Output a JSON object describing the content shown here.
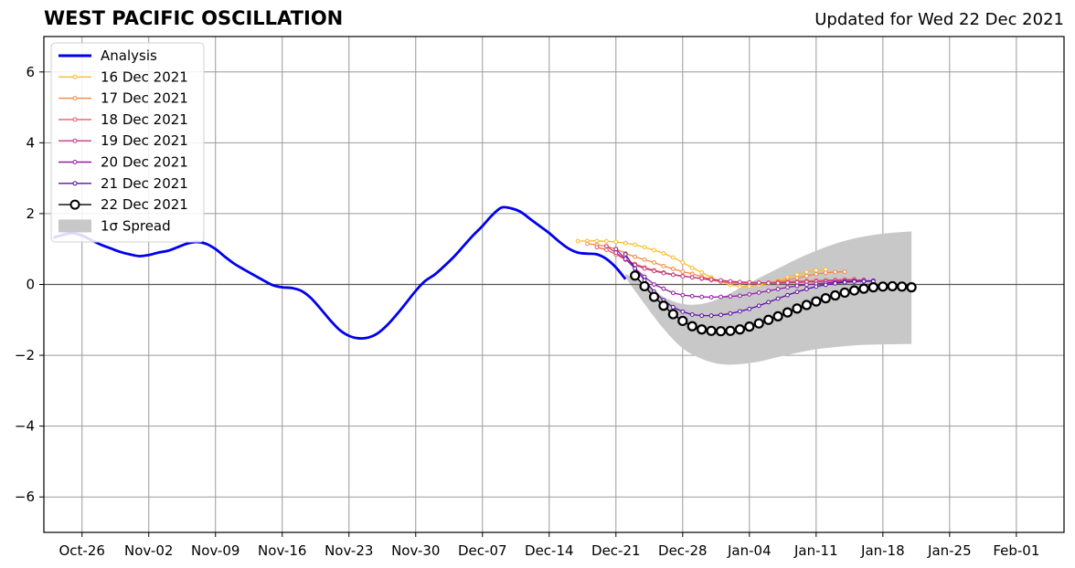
{
  "chart_data": {
    "type": "line",
    "title": "WEST PACIFIC OSCILLATION",
    "subtitle": "Updated for Wed 22 Dec 2021",
    "xlabel": "",
    "ylabel": "",
    "xlim": [
      "2021-10-22",
      "2022-02-06"
    ],
    "ylim": [
      -7,
      7
    ],
    "grid": true,
    "legend_position": "top-left",
    "x_tick_labels": [
      {
        "date": "2021-10-26",
        "label": "Oct-26"
      },
      {
        "date": "2021-11-02",
        "label": "Nov-02"
      },
      {
        "date": "2021-11-09",
        "label": "Nov-09"
      },
      {
        "date": "2021-11-16",
        "label": "Nov-16"
      },
      {
        "date": "2021-11-23",
        "label": "Nov-23"
      },
      {
        "date": "2021-11-30",
        "label": "Nov-30"
      },
      {
        "date": "2021-12-07",
        "label": "Dec-07"
      },
      {
        "date": "2021-12-14",
        "label": "Dec-14"
      },
      {
        "date": "2021-12-21",
        "label": "Dec-21"
      },
      {
        "date": "2021-12-28",
        "label": "Dec-28"
      },
      {
        "date": "2022-01-04",
        "label": "Jan-04"
      },
      {
        "date": "2022-01-11",
        "label": "Jan-11"
      },
      {
        "date": "2022-01-18",
        "label": "Jan-18"
      },
      {
        "date": "2022-01-25",
        "label": "Jan-25"
      },
      {
        "date": "2022-02-01",
        "label": "Feb-01"
      }
    ],
    "y_ticks": [
      -6,
      -4,
      -2,
      0,
      2,
      4,
      6
    ],
    "y_tick_labels": [
      "−6",
      "−4",
      "−2",
      "0",
      "2",
      "4",
      "6"
    ],
    "analysis": {
      "name": "Analysis",
      "color": "#0000ee",
      "x": [
        "2021-10-23",
        "2021-10-24",
        "2021-10-25",
        "2021-10-26",
        "2021-10-27",
        "2021-10-28",
        "2021-10-29",
        "2021-10-30",
        "2021-10-31",
        "2021-11-01",
        "2021-11-02",
        "2021-11-03",
        "2021-11-04",
        "2021-11-05",
        "2021-11-06",
        "2021-11-07",
        "2021-11-08",
        "2021-11-09",
        "2021-11-10",
        "2021-11-11",
        "2021-11-12",
        "2021-11-13",
        "2021-11-14",
        "2021-11-15",
        "2021-11-16",
        "2021-11-17",
        "2021-11-18",
        "2021-11-19",
        "2021-11-20",
        "2021-11-21",
        "2021-11-22",
        "2021-11-23",
        "2021-11-24",
        "2021-11-25",
        "2021-11-26",
        "2021-11-27",
        "2021-11-28",
        "2021-11-29",
        "2021-11-30",
        "2021-12-01",
        "2021-12-02",
        "2021-12-03",
        "2021-12-04",
        "2021-12-05",
        "2021-12-06",
        "2021-12-07",
        "2021-12-08",
        "2021-12-09",
        "2021-12-10",
        "2021-12-11",
        "2021-12-12",
        "2021-12-13",
        "2021-12-14",
        "2021-12-15",
        "2021-12-16",
        "2021-12-17",
        "2021-12-18",
        "2021-12-19",
        "2021-12-20",
        "2021-12-21",
        "2021-12-22"
      ],
      "y": [
        1.32,
        1.4,
        1.45,
        1.38,
        1.25,
        1.12,
        1.02,
        0.92,
        0.85,
        0.8,
        0.83,
        0.9,
        0.95,
        1.05,
        1.15,
        1.2,
        1.15,
        1.0,
        0.78,
        0.58,
        0.42,
        0.27,
        0.12,
        -0.02,
        -0.08,
        -0.1,
        -0.18,
        -0.38,
        -0.68,
        -1.0,
        -1.28,
        -1.45,
        -1.52,
        -1.5,
        -1.38,
        -1.15,
        -0.85,
        -0.52,
        -0.18,
        0.1,
        0.28,
        0.52,
        0.78,
        1.08,
        1.38,
        1.65,
        1.95,
        2.17,
        2.15,
        2.05,
        1.85,
        1.65,
        1.45,
        1.22,
        1.02,
        0.9,
        0.87,
        0.85,
        0.72,
        0.48,
        0.15
      ]
    },
    "forecast_series": [
      {
        "name": "16 Dec 2021",
        "color": "#fbbb2c",
        "start": "2021-12-17",
        "values": [
          1.22,
          1.23,
          1.23,
          1.22,
          1.2,
          1.17,
          1.12,
          1.05,
          0.97,
          0.88,
          0.76,
          0.62,
          0.47,
          0.34,
          0.2,
          0.08,
          -0.01,
          -0.06,
          -0.05,
          -0.02,
          0.04,
          0.11,
          0.2,
          0.28,
          0.35,
          0.4,
          0.42
        ]
      },
      {
        "name": "17 Dec 2021",
        "color": "#f58741",
        "start": "2021-12-18",
        "values": [
          1.15,
          1.12,
          1.08,
          1.0,
          0.88,
          0.78,
          0.7,
          0.62,
          0.52,
          0.44,
          0.36,
          0.3,
          0.22,
          0.15,
          0.1,
          0.08,
          0.05,
          0.04,
          0.04,
          0.05,
          0.08,
          0.13,
          0.18,
          0.24,
          0.29,
          0.33,
          0.35,
          0.36
        ]
      },
      {
        "name": "18 Dec 2021",
        "color": "#e35e66",
        "start": "2021-12-19",
        "values": [
          1.05,
          0.98,
          0.85,
          0.7,
          0.58,
          0.48,
          0.4,
          0.34,
          0.28,
          0.24,
          0.2,
          0.16,
          0.12,
          0.08,
          0.05,
          0.04,
          0.04,
          0.04,
          0.05,
          0.06,
          0.08,
          0.09,
          0.1,
          0.11,
          0.12,
          0.13,
          0.14,
          0.15
        ]
      },
      {
        "name": "19 Dec 2021",
        "color": "#c13a7f",
        "start": "2021-12-20",
        "values": [
          1.08,
          0.9,
          0.7,
          0.55,
          0.45,
          0.38,
          0.32,
          0.27,
          0.23,
          0.2,
          0.17,
          0.14,
          0.12,
          0.09,
          0.07,
          0.06,
          0.05,
          0.04,
          0.04,
          0.05,
          0.06,
          0.07,
          0.08,
          0.09,
          0.1,
          0.11,
          0.12,
          0.13
        ]
      },
      {
        "name": "20 Dec 2021",
        "color": "#911ca6",
        "start": "2021-12-21",
        "values": [
          1.0,
          0.72,
          0.45,
          0.22,
          0.0,
          -0.12,
          -0.24,
          -0.3,
          -0.33,
          -0.35,
          -0.36,
          -0.35,
          -0.34,
          -0.32,
          -0.28,
          -0.23,
          -0.18,
          -0.13,
          -0.08,
          -0.04,
          -0.01,
          0.02,
          0.04,
          0.06,
          0.08,
          0.09,
          0.1,
          0.11
        ]
      },
      {
        "name": "21 Dec 2021",
        "color": "#5b0fa5",
        "start": "2021-12-22",
        "values": [
          0.85,
          0.45,
          0.12,
          -0.2,
          -0.45,
          -0.64,
          -0.77,
          -0.85,
          -0.88,
          -0.88,
          -0.86,
          -0.82,
          -0.76,
          -0.69,
          -0.6,
          -0.5,
          -0.4,
          -0.3,
          -0.21,
          -0.13,
          -0.06,
          -0.01,
          0.03,
          0.06,
          0.08,
          0.09,
          0.09
        ]
      },
      {
        "name": "22 Dec 2021",
        "color": "#000000",
        "start": "2021-12-23",
        "values": [
          0.25,
          -0.05,
          -0.35,
          -0.6,
          -0.84,
          -1.03,
          -1.18,
          -1.27,
          -1.31,
          -1.32,
          -1.31,
          -1.27,
          -1.19,
          -1.1,
          -1.0,
          -0.9,
          -0.79,
          -0.68,
          -0.58,
          -0.48,
          -0.39,
          -0.31,
          -0.23,
          -0.17,
          -0.12,
          -0.08,
          -0.06,
          -0.05,
          -0.06,
          -0.08
        ]
      }
    ],
    "spread": {
      "name": "1σ Spread",
      "color": "#c8c8c8",
      "x": [
        "2021-12-22",
        "2021-12-24",
        "2021-12-26",
        "2021-12-28",
        "2021-12-30",
        "2022-01-01",
        "2022-01-03",
        "2022-01-05",
        "2022-01-07",
        "2022-01-09",
        "2022-01-11",
        "2022-01-13",
        "2022-01-15",
        "2022-01-17",
        "2022-01-19",
        "2022-01-21"
      ],
      "upper": [
        0.3,
        0.02,
        -0.35,
        -0.55,
        -0.55,
        -0.38,
        -0.1,
        0.18,
        0.45,
        0.72,
        0.95,
        1.15,
        1.3,
        1.4,
        1.46,
        1.5
      ],
      "lower": [
        0.2,
        -0.55,
        -1.25,
        -1.8,
        -2.1,
        -2.25,
        -2.25,
        -2.18,
        -2.05,
        -1.93,
        -1.83,
        -1.77,
        -1.72,
        -1.7,
        -1.69,
        -1.68
      ]
    }
  }
}
